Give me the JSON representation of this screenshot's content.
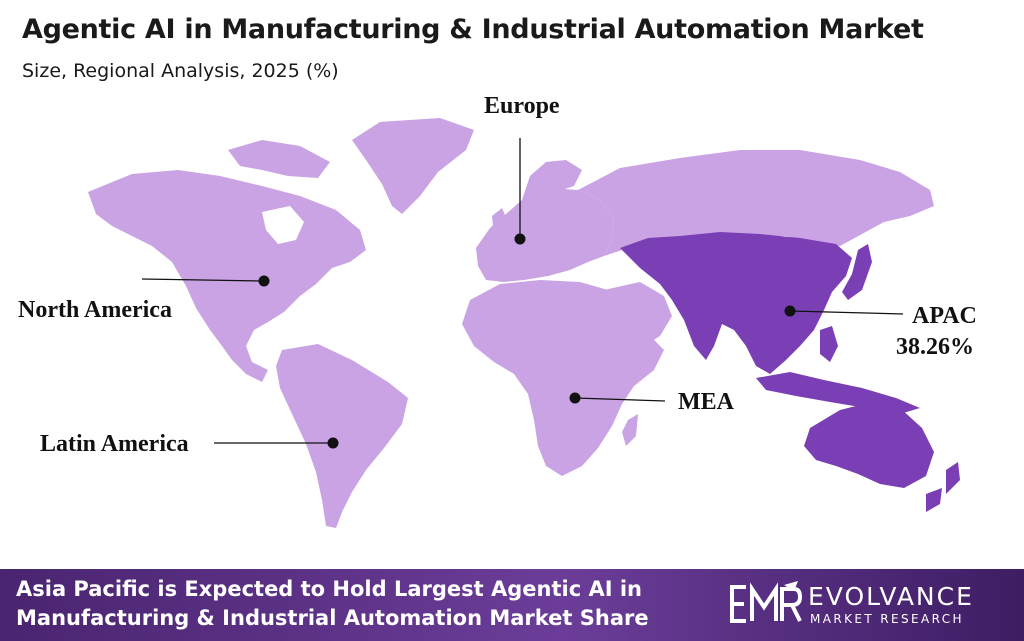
{
  "title": "Agentic AI in Manufacturing & Industrial Automation Market",
  "subtitle": "Size, Regional Analysis, 2025 (%)",
  "colors": {
    "land_default": "#c9a3e3",
    "land_apac": "#7b3fb5",
    "footer": "#5a2f85",
    "text": "#111111"
  },
  "regions": [
    {
      "id": "north-america",
      "label": "North America"
    },
    {
      "id": "europe",
      "label": "Europe"
    },
    {
      "id": "apac",
      "label": "APAC",
      "value": "38.26%"
    },
    {
      "id": "mea",
      "label": "MEA"
    },
    {
      "id": "latin-america",
      "label": "Latin America"
    }
  ],
  "footer": {
    "line1": "Asia Pacific is Expected to Hold Largest Agentic AI in",
    "line2": "Manufacturing & Industrial Automation Market Share"
  },
  "brand": {
    "name": "EVOLVANCE",
    "tagline": "MARKET RESEARCH"
  }
}
